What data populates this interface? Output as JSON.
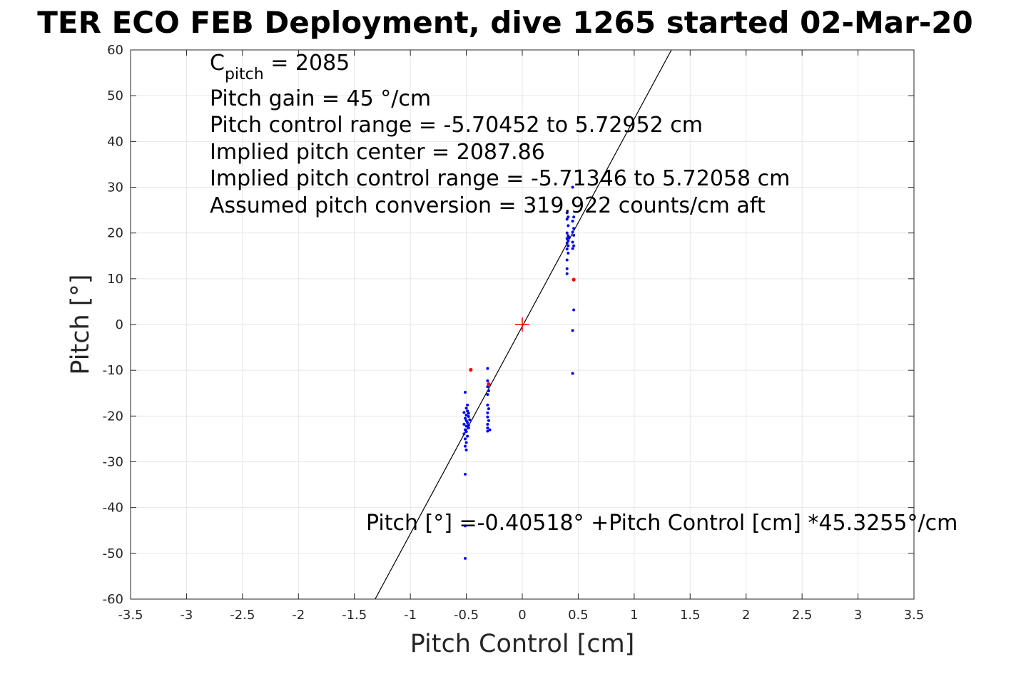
{
  "chart_data": {
    "type": "scatter",
    "title": "TER ECO FEB Deployment, dive 1265 started 02-Mar-20",
    "xlabel": "Pitch Control [cm]",
    "ylabel": "Pitch [°]",
    "xlim": [
      -3.5,
      3.5
    ],
    "ylim": [
      -60,
      60
    ],
    "grid": true,
    "x_ticks": [
      "-3.5",
      "-3",
      "-2.5",
      "-2",
      "-1.5",
      "-1",
      "-0.5",
      "0",
      "0.5",
      "1",
      "1.5",
      "2",
      "2.5",
      "3",
      "3.5"
    ],
    "x_tick_values": [
      -3.5,
      -3,
      -2.5,
      -2,
      -1.5,
      -1,
      -0.5,
      0,
      0.5,
      1,
      1.5,
      2,
      2.5,
      3,
      3.5
    ],
    "y_ticks": [
      "-60",
      "-50",
      "-40",
      "-30",
      "-20",
      "-10",
      "0",
      "10",
      "20",
      "30",
      "40",
      "50",
      "60"
    ],
    "y_tick_values": [
      -60,
      -50,
      -40,
      -30,
      -20,
      -10,
      0,
      10,
      20,
      30,
      40,
      50,
      60
    ],
    "annotations": {
      "c_pitch_main": "C",
      "c_pitch_sub": "pitch",
      "c_pitch_value": " = 2085",
      "lines": [
        "Pitch gain = 45 °/cm",
        "Pitch control range = -5.70452 to 5.72952 cm",
        "Implied pitch center = 2087.86",
        "Implied pitch control range = -5.71346 to 5.72058 cm",
        "Assumed pitch conversion = 319.922 counts/cm aft"
      ],
      "fit_equation": "Pitch [°] =-0.40518° +Pitch Control [cm] *45.3255°/cm"
    },
    "fit_line": {
      "intercept": -0.40518,
      "slope": 45.3255,
      "color": "#000000"
    },
    "center_marker": {
      "x": 0,
      "y": 0,
      "color": "#ff0000"
    },
    "series": [
      {
        "color": "#0000ff",
        "points": [
          [
            -0.51,
            -14.8
          ],
          [
            -0.49,
            -17.6
          ],
          [
            -0.5,
            -18.3
          ],
          [
            -0.49,
            -18.9
          ],
          [
            -0.52,
            -19.2
          ],
          [
            -0.5,
            -19.8
          ],
          [
            -0.48,
            -20.1
          ],
          [
            -0.51,
            -20.5
          ],
          [
            -0.5,
            -21.0
          ],
          [
            -0.49,
            -21.4
          ],
          [
            -0.52,
            -21.8
          ],
          [
            -0.5,
            -22.2
          ],
          [
            -0.48,
            -22.6
          ],
          [
            -0.51,
            -23.0
          ],
          [
            -0.5,
            -23.4
          ],
          [
            -0.52,
            -23.9
          ],
          [
            -0.49,
            -24.4
          ],
          [
            -0.51,
            -25.0
          ],
          [
            -0.5,
            -25.8
          ],
          [
            -0.51,
            -26.6
          ],
          [
            -0.5,
            -27.4
          ],
          [
            -0.51,
            -32.7
          ],
          [
            -0.51,
            -44.0
          ],
          [
            -0.51,
            -51.1
          ],
          [
            -0.48,
            -19.4
          ],
          [
            -0.47,
            -20.8
          ],
          [
            -0.48,
            -22.0
          ],
          [
            -0.31,
            -9.6
          ],
          [
            -0.31,
            -12.3
          ],
          [
            -0.3,
            -13.0
          ],
          [
            -0.31,
            -13.6
          ],
          [
            -0.3,
            -14.5
          ],
          [
            -0.31,
            -15.3
          ],
          [
            -0.31,
            -17.6
          ],
          [
            -0.3,
            -18.4
          ],
          [
            -0.31,
            -19.3
          ],
          [
            -0.31,
            -20.2
          ],
          [
            -0.3,
            -21.0
          ],
          [
            -0.31,
            -21.8
          ],
          [
            -0.31,
            -22.6
          ],
          [
            -0.31,
            -23.3
          ],
          [
            -0.29,
            -23.0
          ],
          [
            0.4,
            11.1
          ],
          [
            0.4,
            12.2
          ],
          [
            0.4,
            14.1
          ],
          [
            0.41,
            15.6
          ],
          [
            0.4,
            16.5
          ],
          [
            0.41,
            17.2
          ],
          [
            0.4,
            17.8
          ],
          [
            0.41,
            18.3
          ],
          [
            0.4,
            18.8
          ],
          [
            0.41,
            19.4
          ],
          [
            0.4,
            20.0
          ],
          [
            0.41,
            21.6
          ],
          [
            0.4,
            23.0
          ],
          [
            0.41,
            23.5
          ],
          [
            0.4,
            24.4
          ],
          [
            0.42,
            19.0
          ],
          [
            0.45,
            30.0
          ],
          [
            0.46,
            23.5
          ],
          [
            0.45,
            22.6
          ],
          [
            0.46,
            21.0
          ],
          [
            0.45,
            20.2
          ],
          [
            0.46,
            19.5
          ],
          [
            0.45,
            18.0
          ],
          [
            0.46,
            17.2
          ],
          [
            0.45,
            16.6
          ],
          [
            0.46,
            3.2
          ],
          [
            0.45,
            -1.3
          ],
          [
            0.45,
            -10.7
          ]
        ]
      },
      {
        "color": "#ff0000",
        "points": [
          [
            -0.46,
            -9.9
          ],
          [
            -0.3,
            -13.0
          ],
          [
            0.46,
            9.8
          ]
        ]
      }
    ]
  }
}
